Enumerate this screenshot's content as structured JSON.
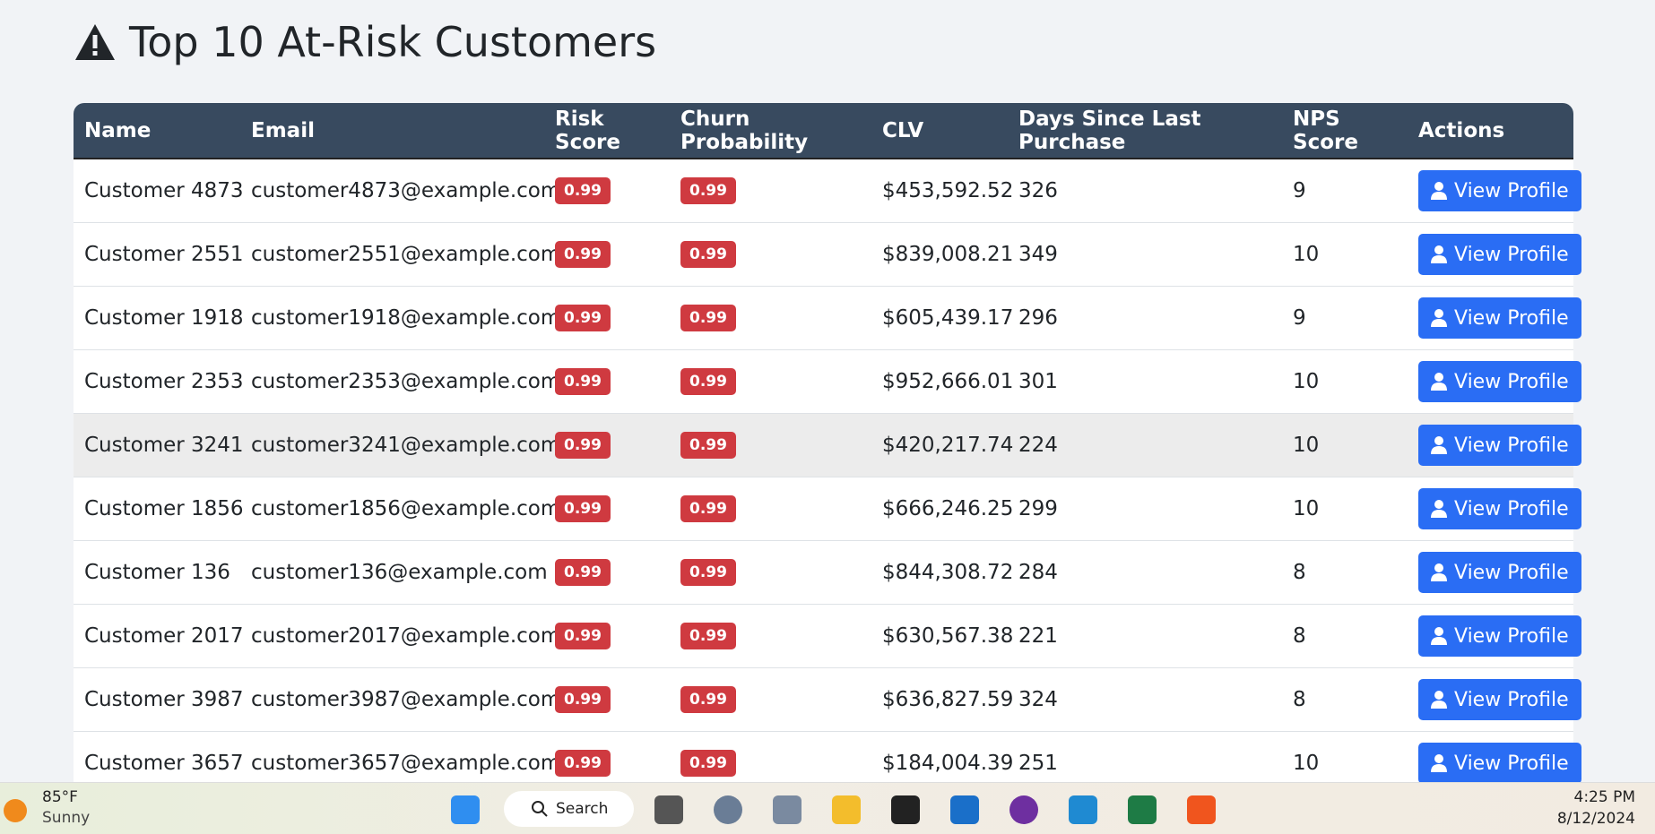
{
  "header": {
    "title": "Top 10 At-Risk Customers"
  },
  "table": {
    "columns": [
      "Name",
      "Email",
      "Risk Score",
      "Churn Probability",
      "CLV",
      "Days Since Last Purchase",
      "NPS Score",
      "Actions"
    ],
    "rows": [
      [
        "Customer 4873",
        "customer4873@example.com",
        "0.99",
        "0.99",
        "$453,592.52",
        "326",
        "9",
        "View Profile"
      ],
      [
        "Customer 2551",
        "customer2551@example.com",
        "0.99",
        "0.99",
        "$839,008.21",
        "349",
        "10",
        "View Profile"
      ],
      [
        "Customer 1918",
        "customer1918@example.com",
        "0.99",
        "0.99",
        "$605,439.17",
        "296",
        "9",
        "View Profile"
      ],
      [
        "Customer 2353",
        "customer2353@example.com",
        "0.99",
        "0.99",
        "$952,666.01",
        "301",
        "10",
        "View Profile"
      ],
      [
        "Customer 3241",
        "customer3241@example.com",
        "0.99",
        "0.99",
        "$420,217.74",
        "224",
        "10",
        "View Profile"
      ],
      [
        "Customer 1856",
        "customer1856@example.com",
        "0.99",
        "0.99",
        "$666,246.25",
        "299",
        "10",
        "View Profile"
      ],
      [
        "Customer 136",
        "customer136@example.com",
        "0.99",
        "0.99",
        "$844,308.72",
        "284",
        "8",
        "View Profile"
      ],
      [
        "Customer 2017",
        "customer2017@example.com",
        "0.99",
        "0.99",
        "$630,567.38",
        "221",
        "8",
        "View Profile"
      ],
      [
        "Customer 3987",
        "customer3987@example.com",
        "0.99",
        "0.99",
        "$636,827.59",
        "324",
        "8",
        "View Profile"
      ],
      [
        "Customer 3657",
        "customer3657@example.com",
        "0.99",
        "0.99",
        "$184,004.39",
        "251",
        "10",
        "View Profile"
      ]
    ]
  },
  "taskbar": {
    "temperature": "85°F",
    "weather": "Sunny",
    "search": "Search",
    "time": "4:25 PM",
    "date": "8/12/2024"
  }
}
